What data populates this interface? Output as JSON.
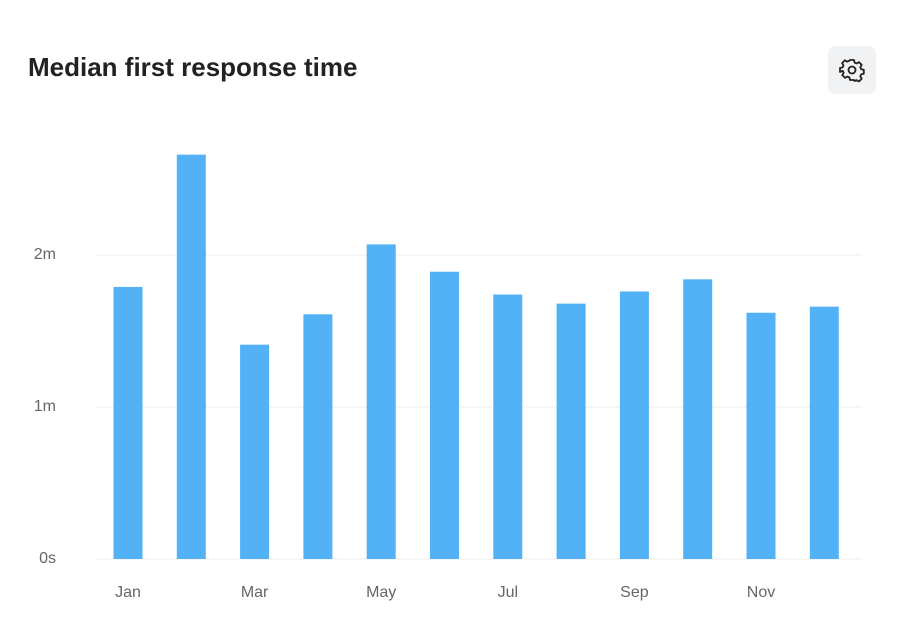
{
  "chart_data": {
    "type": "bar",
    "title": "Median first response time",
    "categories": [
      "Jan",
      null,
      "Mar",
      null,
      "May",
      null,
      "Jul",
      null,
      "Sep",
      null,
      "Nov",
      null
    ],
    "values": [
      1.79,
      2.66,
      1.41,
      1.61,
      2.07,
      1.89,
      1.74,
      1.68,
      1.76,
      1.84,
      1.62,
      1.66
    ],
    "color": "#52b2f5",
    "ylim": [
      0,
      3
    ],
    "yticks": [
      {
        "value": 0,
        "label": "0s"
      },
      {
        "value": 1,
        "label": "1m"
      },
      {
        "value": 2,
        "label": "2m"
      }
    ],
    "grid": true
  }
}
